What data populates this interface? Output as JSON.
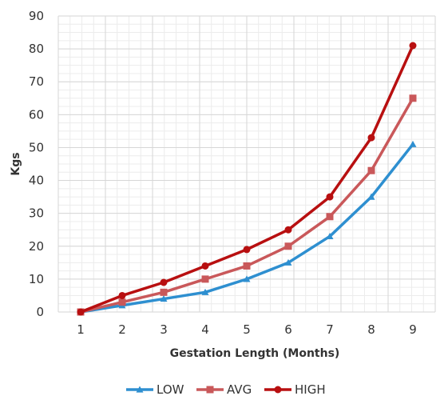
{
  "chart_data": {
    "type": "line",
    "title": "",
    "xlabel": "Gestation Length (Months)",
    "ylabel": "Kgs",
    "x": [
      1,
      2,
      3,
      4,
      5,
      6,
      7,
      8,
      9
    ],
    "ylim": [
      0,
      90
    ],
    "yticks": [
      0,
      10,
      20,
      30,
      40,
      50,
      60,
      70,
      80,
      90
    ],
    "grid": true,
    "legend_position": "bottom",
    "series": [
      {
        "name": "LOW",
        "color": "#2e8fd0",
        "marker": "triangle",
        "values": [
          0,
          2,
          4,
          6,
          10,
          15,
          23,
          35,
          51
        ]
      },
      {
        "name": "AVG",
        "color": "#c9585a",
        "marker": "square",
        "values": [
          0,
          3,
          6,
          10,
          14,
          20,
          29,
          43,
          65
        ]
      },
      {
        "name": "HIGH",
        "color": "#b80f10",
        "marker": "circle",
        "values": [
          0,
          5,
          9,
          14,
          19,
          25,
          35,
          53,
          81
        ]
      }
    ]
  }
}
